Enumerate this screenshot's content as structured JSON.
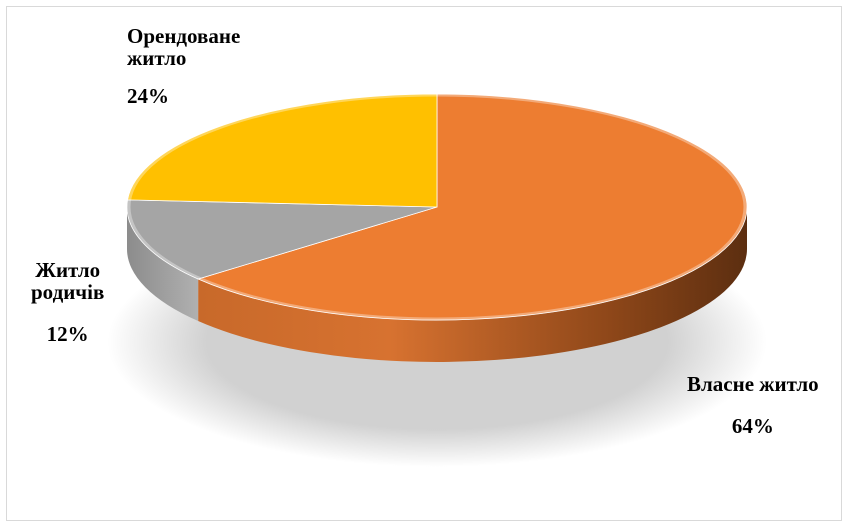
{
  "chart_data": {
    "type": "pie",
    "title": "",
    "slices": [
      {
        "name": "Власне житло",
        "name_lines": [
          "Власне житло"
        ],
        "value": 64,
        "label": "64%",
        "color": "#ED7D31"
      },
      {
        "name": "Житло родичів",
        "name_lines": [
          "Житло",
          "родичів"
        ],
        "value": 12,
        "label": "12%",
        "color": "#A5A5A5"
      },
      {
        "name": "Орендоване житло",
        "name_lines": [
          "Орендоване",
          "житло"
        ],
        "value": 24,
        "label": "24%",
        "color": "#FFC000"
      }
    ],
    "legend": "none"
  }
}
